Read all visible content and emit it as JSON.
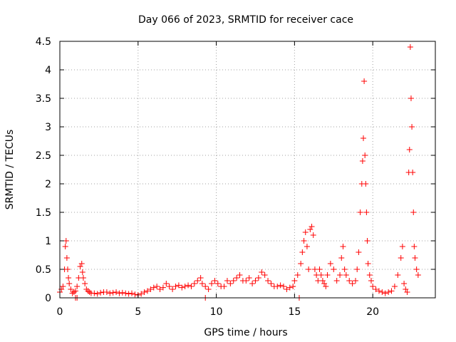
{
  "chart_data": {
    "type": "scatter",
    "title": "Day 066 of 2023, SRMTID for receiver cace",
    "xlabel": "GPS time / hours",
    "ylabel": "SRMTID / TECUs",
    "xlim": [
      0,
      24
    ],
    "ylim": [
      0,
      4.5
    ],
    "xticks": [
      0,
      5,
      10,
      15,
      20
    ],
    "xtick_labels": [
      "0",
      "5",
      "10",
      "15",
      "20"
    ],
    "yticks": [
      0,
      0.5,
      1,
      1.5,
      2,
      2.5,
      3,
      3.5,
      4,
      4.5
    ],
    "ytick_labels": [
      "0",
      "0.5",
      "1",
      "1.5",
      "2",
      "2.5",
      "3",
      "3.5",
      "4",
      "4.5"
    ],
    "grid": true,
    "marker": "+",
    "color": "#ff0000",
    "series": [
      {
        "name": "SRMTID",
        "x": [
          0.0,
          0.1,
          0.2,
          0.3,
          0.35,
          0.4,
          0.45,
          0.5,
          0.55,
          0.6,
          0.7,
          0.8,
          0.9,
          1.0,
          1.1,
          1.2,
          1.3,
          1.4,
          1.45,
          1.5,
          1.6,
          1.7,
          1.8,
          1.9,
          2.0,
          2.2,
          2.4,
          2.6,
          2.8,
          3.0,
          3.2,
          3.4,
          3.6,
          3.8,
          4.0,
          4.2,
          4.4,
          4.6,
          4.8,
          5.0,
          5.2,
          5.4,
          5.6,
          5.8,
          6.0,
          6.2,
          6.4,
          6.6,
          6.8,
          7.0,
          7.2,
          7.4,
          7.6,
          7.8,
          8.0,
          8.2,
          8.4,
          8.6,
          8.8,
          9.0,
          9.1,
          9.3,
          9.5,
          9.7,
          9.9,
          10.1,
          10.3,
          10.5,
          10.7,
          10.9,
          11.1,
          11.3,
          11.5,
          11.7,
          11.9,
          12.1,
          12.3,
          12.5,
          12.7,
          12.9,
          13.1,
          13.3,
          13.5,
          13.7,
          13.9,
          14.1,
          14.3,
          14.5,
          14.7,
          14.9,
          15.0,
          15.2,
          15.4,
          15.5,
          15.6,
          15.7,
          15.8,
          15.9,
          16.0,
          16.1,
          16.2,
          16.3,
          16.4,
          16.5,
          16.6,
          16.7,
          16.8,
          16.9,
          17.0,
          17.1,
          17.3,
          17.5,
          17.7,
          17.9,
          18.0,
          18.1,
          18.2,
          18.3,
          18.5,
          18.7,
          18.9,
          19.0,
          19.1,
          19.2,
          19.3,
          19.35,
          19.4,
          19.45,
          19.5,
          19.55,
          19.6,
          19.65,
          19.7,
          19.8,
          19.9,
          20.0,
          20.2,
          20.4,
          20.6,
          20.8,
          21.0,
          21.2,
          21.4,
          21.6,
          21.8,
          21.9,
          22.0,
          22.1,
          22.2,
          22.3,
          22.35,
          22.4,
          22.45,
          22.5,
          22.55,
          22.6,
          22.65,
          22.7,
          22.8,
          22.9,
          1.0,
          1.1,
          9.3,
          15.3
        ],
        "y": [
          0.1,
          0.15,
          0.2,
          0.5,
          0.9,
          1.0,
          0.7,
          0.5,
          0.35,
          0.25,
          0.15,
          0.08,
          0.1,
          0.12,
          0.2,
          0.35,
          0.55,
          0.6,
          0.45,
          0.35,
          0.25,
          0.15,
          0.12,
          0.1,
          0.08,
          0.08,
          0.07,
          0.09,
          0.1,
          0.1,
          0.08,
          0.09,
          0.1,
          0.08,
          0.09,
          0.08,
          0.07,
          0.08,
          0.06,
          0.05,
          0.07,
          0.1,
          0.12,
          0.15,
          0.18,
          0.2,
          0.15,
          0.18,
          0.25,
          0.2,
          0.15,
          0.2,
          0.22,
          0.18,
          0.2,
          0.22,
          0.2,
          0.25,
          0.3,
          0.35,
          0.25,
          0.2,
          0.15,
          0.25,
          0.3,
          0.25,
          0.2,
          0.2,
          0.3,
          0.25,
          0.3,
          0.35,
          0.4,
          0.3,
          0.3,
          0.35,
          0.25,
          0.3,
          0.35,
          0.45,
          0.4,
          0.3,
          0.25,
          0.2,
          0.2,
          0.22,
          0.2,
          0.15,
          0.18,
          0.2,
          0.3,
          0.4,
          0.6,
          0.8,
          1.0,
          1.15,
          0.9,
          0.5,
          1.2,
          1.25,
          1.1,
          0.5,
          0.4,
          0.3,
          0.5,
          0.4,
          0.3,
          0.25,
          0.2,
          0.4,
          0.6,
          0.5,
          0.3,
          0.4,
          0.7,
          0.9,
          0.5,
          0.4,
          0.3,
          0.25,
          0.3,
          0.5,
          0.8,
          1.5,
          2.0,
          2.4,
          2.8,
          3.8,
          2.5,
          2.0,
          1.5,
          1.0,
          0.6,
          0.4,
          0.3,
          0.2,
          0.15,
          0.12,
          0.1,
          0.08,
          0.1,
          0.12,
          0.2,
          0.4,
          0.7,
          0.9,
          0.25,
          0.15,
          0.1,
          2.2,
          2.6,
          4.4,
          3.5,
          3.0,
          2.2,
          1.5,
          0.9,
          0.7,
          0.5,
          0.4,
          0.0,
          0.0,
          0.0,
          0.0
        ]
      }
    ]
  }
}
